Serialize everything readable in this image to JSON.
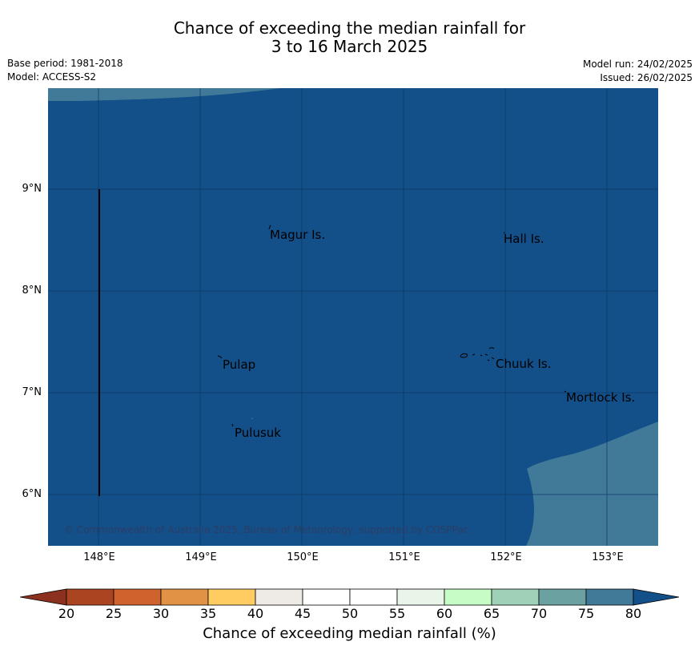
{
  "header": {
    "title_line1": "Chance of exceeding the median rainfall for",
    "title_line2": "3 to 16 March 2025",
    "base_period": "Base period: 1981-2018",
    "model": "Model: ACCESS-S2",
    "model_run": "Model run: 24/02/2025",
    "issued": "Issued: 26/02/2025"
  },
  "map": {
    "lat_labels": [
      "9°N",
      "8°N",
      "7°N",
      "6°N"
    ],
    "lon_labels": [
      "148°E",
      "149°E",
      "150°E",
      "151°E",
      "152°E",
      "153°E"
    ],
    "places": [
      "Magur Is.",
      "Hall Is.",
      "Pulap",
      "Chuuk Is.",
      "Mortlock Is.",
      "Pulusuk"
    ],
    "copyright": "© Commonwealth of Australia 2025, Bureau of Meteorology, supported by COSPPac",
    "colors": {
      "dominant": "#134f88",
      "secondary": "#417a98",
      "gridline": "#0a3463"
    }
  },
  "colorbar": {
    "ticks": [
      "20",
      "25",
      "30",
      "35",
      "40",
      "45",
      "50",
      "55",
      "60",
      "65",
      "70",
      "75",
      "80"
    ],
    "colors": [
      "#ab4521",
      "#ce632e",
      "#e19245",
      "#fecc60",
      "#eeeae5",
      "#ffffff",
      "#ffffff",
      "#e9f5e9",
      "#c6fdc6",
      "#9ed1b8",
      "#6ba1a0",
      "#417a98"
    ],
    "under_color": "#8c3120",
    "over_color": "#134f88",
    "label": "Chance of exceeding median rainfall (%)"
  }
}
